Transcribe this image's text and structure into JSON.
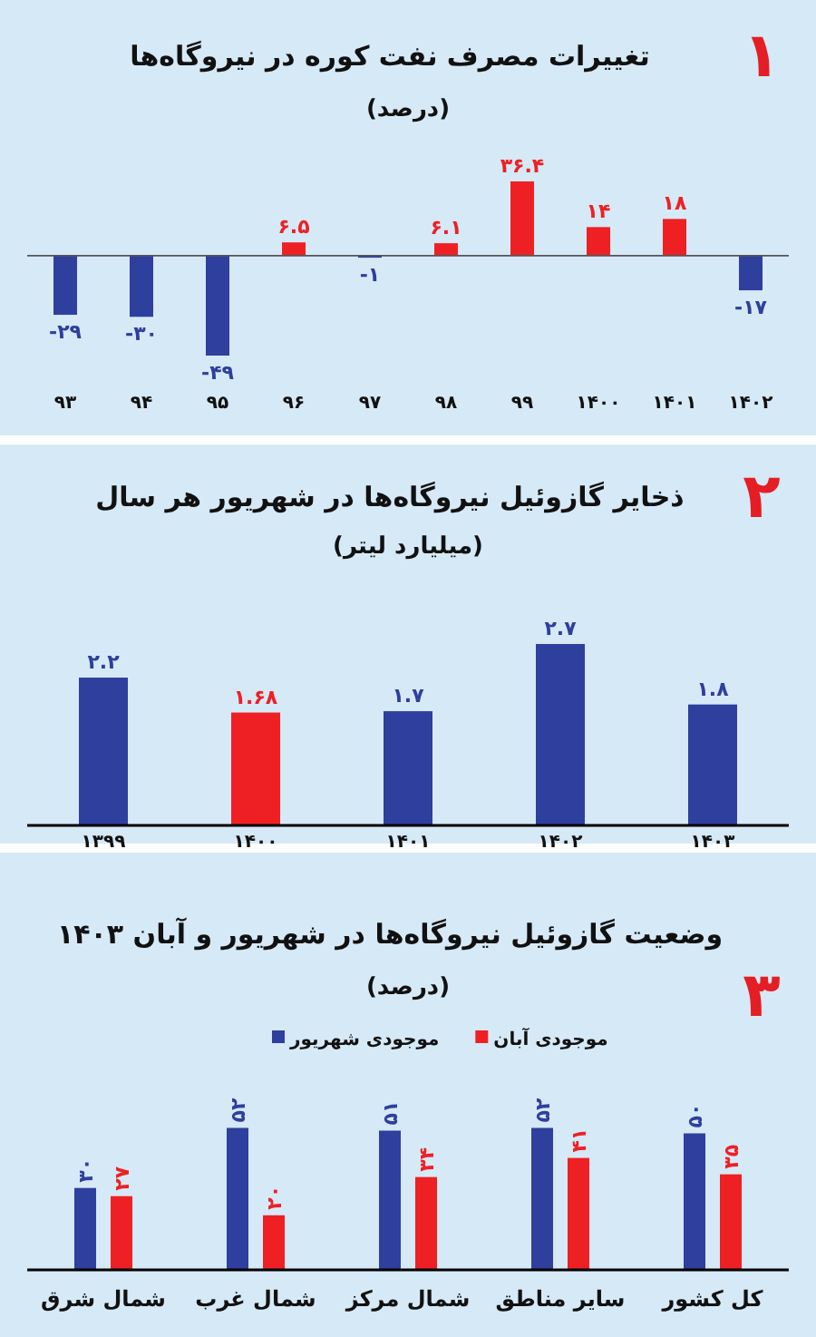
{
  "chart_data": [
    {
      "type": "bar",
      "title": "تغییرات مصرف نفت کوره در نیروگاه‌ها",
      "subtitle": "(درصد)",
      "annotations": [
        "۱"
      ],
      "categories": [
        "۹۳",
        "۹۴",
        "۹۵",
        "۹۶",
        "۹۷",
        "۹۸",
        "۹۹",
        "۱۴۰۰",
        "۱۴۰۱",
        "۱۴۰۲"
      ],
      "values": [
        -29,
        -30,
        -49,
        6.5,
        -1,
        6.1,
        36.4,
        14,
        18,
        -17
      ],
      "colors": [
        "#2e3f9e",
        "#2e3f9e",
        "#2e3f9e",
        "#ee2024",
        "#2e3f9e",
        "#ee2024",
        "#ee2024",
        "#ee2024",
        "#ee2024",
        "#2e3f9e"
      ],
      "value_labels": [
        "-۲۹",
        "-۳۰",
        "-۴۹",
        "۶.۵",
        "-۱",
        "۶.۱",
        "۳۶.۴",
        "۱۴",
        "۱۸",
        "-۱۷"
      ]
    },
    {
      "type": "bar",
      "title": "ذخایر گازوئیل نیروگاه‌ها در شهریور هر سال",
      "subtitle": "(میلیارد لیتر)",
      "annotations": [
        "۲"
      ],
      "categories": [
        "۱۳۹۹",
        "۱۴۰۰",
        "۱۴۰۱",
        "۱۴۰۲",
        "۱۴۰۳"
      ],
      "values": [
        2.2,
        1.68,
        1.7,
        2.7,
        1.8
      ],
      "colors": [
        "#2e3f9e",
        "#ee2024",
        "#2e3f9e",
        "#2e3f9e",
        "#2e3f9e"
      ],
      "value_labels": [
        "۲.۲",
        "۱.۶۸",
        "۱.۷",
        "۲.۷",
        "۱.۸"
      ]
    },
    {
      "type": "bar",
      "title": "وضعیت گازوئیل نیروگاه‌ها در شهریور و آبان ۱۴۰۳",
      "subtitle": "(درصد)",
      "annotations": [
        "۳"
      ],
      "legend": "top",
      "categories": [
        "شمال شرق",
        "شمال غرب",
        "شمال مرکز",
        "سایر مناطق",
        "کل کشور"
      ],
      "series": [
        {
          "name": "موجودی شهریور",
          "color": "#2e3f9e",
          "values": [
            30,
            52,
            51,
            52,
            50
          ],
          "value_labels": [
            "۳۰",
            "۵۲",
            "۵۱",
            "۵۲",
            "۵۰"
          ]
        },
        {
          "name": "موجودی آبان",
          "color": "#ee2024",
          "values": [
            27,
            20,
            34,
            41,
            35
          ],
          "value_labels": [
            "۲۷",
            "۲۰",
            "۳۴",
            "۴۱",
            "۳۵"
          ]
        }
      ]
    }
  ]
}
